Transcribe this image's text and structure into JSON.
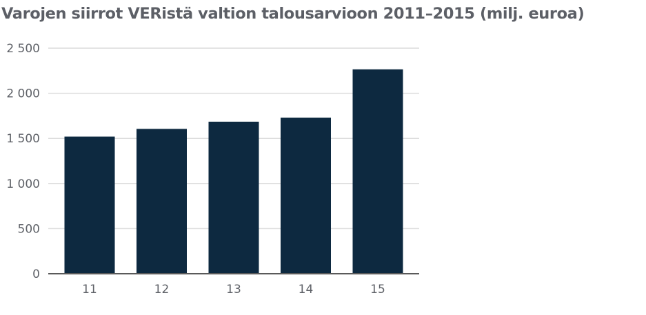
{
  "chart_data": {
    "type": "bar",
    "title": "Varojen siirrot VERistä valtion talousarvioon 2011–2015 (milj. euroa)",
    "xlabel": "",
    "ylabel": "",
    "categories": [
      "11",
      "12",
      "13",
      "14",
      "15"
    ],
    "values": [
      1520,
      1605,
      1685,
      1730,
      2265
    ],
    "ylim": [
      0,
      2500
    ],
    "yticks": [
      0,
      500,
      1000,
      1500,
      2000,
      2500
    ],
    "ytick_labels": [
      "0",
      "500",
      "1 000",
      "1 500",
      "2 000",
      "2 500"
    ],
    "grid": true,
    "legend": "none",
    "colors": {
      "bar": "#0d2940",
      "grid": "#dcdcdc",
      "axis": "#5a5a5a",
      "text": "#5c5f66"
    }
  }
}
